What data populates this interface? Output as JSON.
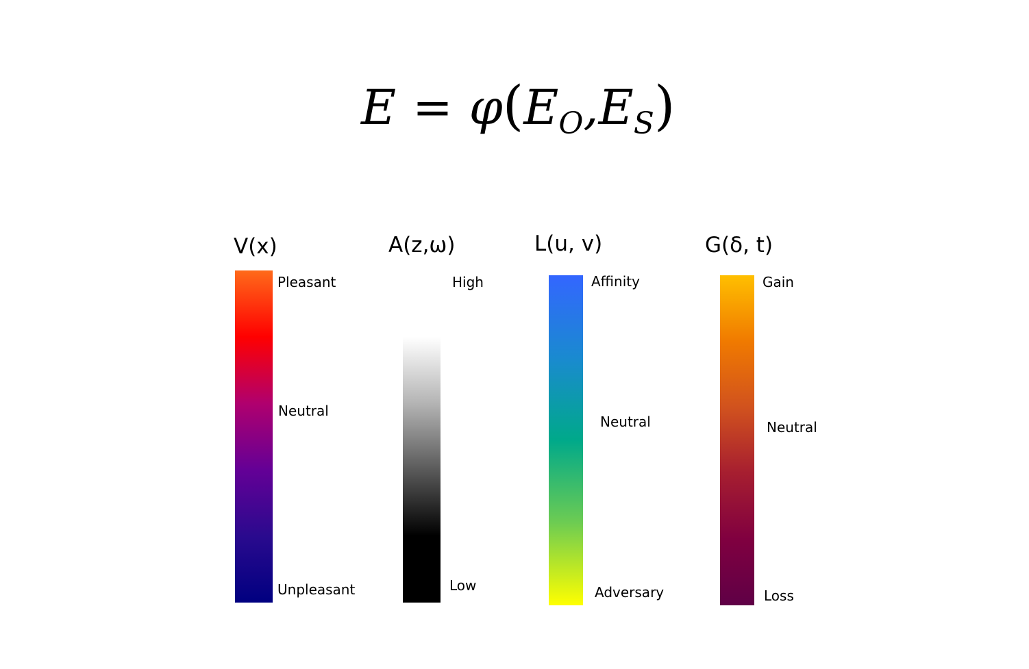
{
  "equation": {
    "lhs": "E",
    "equals": "=",
    "function": "φ",
    "open_paren": "(",
    "arg1_base": "E",
    "arg1_sub": "O",
    "comma": ",",
    "arg2_base": "E",
    "arg2_sub": "S",
    "close_paren": ")"
  },
  "scales": [
    {
      "title": "V(x)",
      "top_label": "Pleasant",
      "mid_label": "Neutral",
      "bottom_label": "Unpleasant",
      "colors": [
        "#ff6a1a",
        "#ff0000",
        "#b0006e",
        "#640096",
        "#2a0a8e",
        "#000080"
      ]
    },
    {
      "title": "A(z,ω)",
      "top_label": "High",
      "bottom_label": "Low",
      "colors": [
        "#ffffff",
        "#ffffff",
        "#b4b4b4",
        "#5a5a5a",
        "#000000",
        "#000000"
      ]
    },
    {
      "title": "L(u, v)",
      "top_label": "Affinity",
      "mid_label": "Neutral",
      "bottom_label": "Adversary",
      "colors": [
        "#3366ff",
        "#1a8ad0",
        "#00a98a",
        "#6dcc52",
        "#ffff00"
      ]
    },
    {
      "title": "G(δ, t)",
      "top_label": "Gain",
      "mid_label": "Neutral",
      "bottom_label": "Loss",
      "colors": [
        "#ffbf00",
        "#f07a00",
        "#d1521e",
        "#a61e30",
        "#800040",
        "#5f0046"
      ]
    }
  ]
}
